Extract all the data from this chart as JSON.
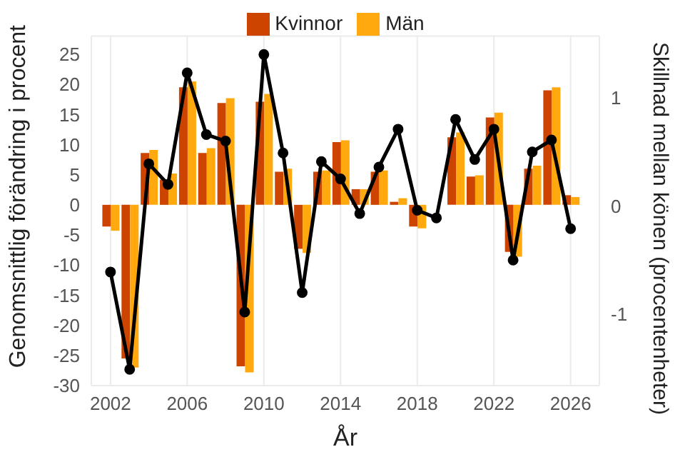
{
  "chart_data": {
    "type": "bar",
    "xlabel": "År",
    "ylabel": "Genomsnittlig förändring i procent",
    "y2label": "Skillnad mellan könen (procentenheter)",
    "x": [
      2002,
      2003,
      2004,
      2005,
      2006,
      2007,
      2008,
      2009,
      2010,
      2011,
      2012,
      2013,
      2014,
      2015,
      2016,
      2017,
      2018,
      2019,
      2020,
      2021,
      2022,
      2023,
      2024,
      2025,
      2026
    ],
    "series": [
      {
        "name": "Kvinnor",
        "color": "#cc4400",
        "values": [
          -3.6,
          -25.5,
          8.6,
          4.2,
          19.5,
          8.6,
          16.9,
          -26.8,
          17.1,
          5.5,
          -7.3,
          5.5,
          10.4,
          2.6,
          5.5,
          0.5,
          -3.6,
          0,
          11.2,
          4.7,
          14.5,
          -7.8,
          6,
          19,
          1.6
        ]
      },
      {
        "name": "Män",
        "color": "#ffa90e",
        "values": [
          -4.3,
          -27,
          9.1,
          5.2,
          20.5,
          9.4,
          17.7,
          -27.8,
          18.4,
          6,
          -8,
          5.7,
          10.7,
          2.6,
          5.7,
          1.1,
          -3.9,
          0,
          12,
          4.9,
          15.3,
          -8.6,
          6.5,
          19.5,
          1.3
        ]
      },
      {
        "type": "line",
        "axis": "y2",
        "color": "#000000",
        "marker": "circle",
        "line_style": "solid",
        "values": [
          -0.61,
          -1.51,
          0.39,
          0.2,
          1.23,
          0.66,
          0.6,
          -0.98,
          1.4,
          0.49,
          -0.8,
          0.41,
          0.25,
          -0.07,
          0.36,
          0.71,
          -0.04,
          -0.11,
          0.8,
          0.43,
          0.71,
          -0.5,
          0.5,
          0.61,
          -0.21
        ]
      }
    ],
    "xlim": [
      2001,
      2027.5
    ],
    "xticks": [
      2002,
      2006,
      2010,
      2014,
      2018,
      2022,
      2026
    ],
    "ylim": [
      -30,
      28
    ],
    "yticks": [
      -30,
      -25,
      -20,
      -15,
      -10,
      -5,
      0,
      5,
      10,
      15,
      20,
      25
    ],
    "y2lim": [
      -1.66,
      1.57
    ],
    "y2ticks": [
      -1,
      0,
      1
    ],
    "grid": true,
    "legend": "top"
  }
}
